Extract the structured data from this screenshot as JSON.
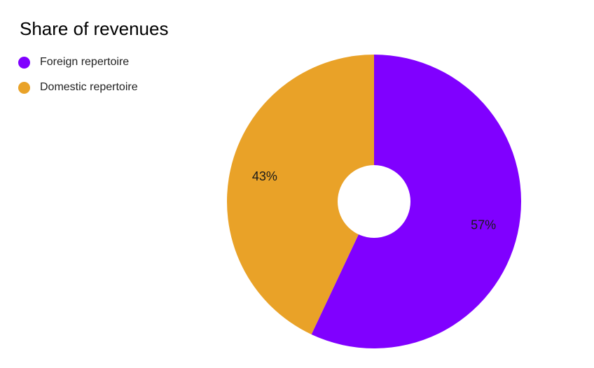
{
  "chart_data": {
    "type": "pie",
    "title": "Share of revenues",
    "legend_position": "top-left",
    "donut": true,
    "series": [
      {
        "name": "Foreign repertoire",
        "value": 57,
        "label": "57%",
        "color": "#8000ff"
      },
      {
        "name": "Domestic repertoire",
        "value": 43,
        "label": "43%",
        "color": "#e9a228"
      }
    ]
  }
}
